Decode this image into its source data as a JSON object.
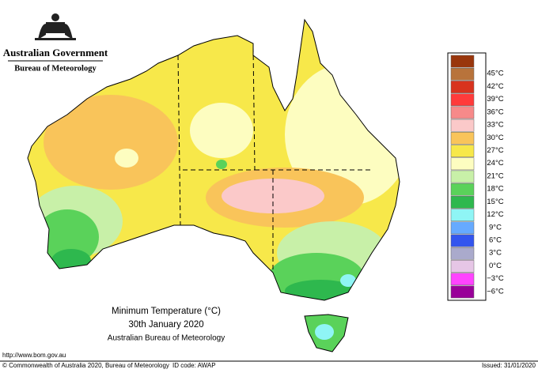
{
  "header": {
    "government": "Australian Government",
    "bureau": "Bureau of Meteorology"
  },
  "legend": {
    "colors": [
      "#99360c",
      "#b8733b",
      "#d8331e",
      "#ff3b3b",
      "#f78a8a",
      "#fbc9c9",
      "#f9c45a",
      "#f7e84a",
      "#fdfdc0",
      "#c8f0a8",
      "#5ad25a",
      "#2eb84e",
      "#8ff5f5",
      "#66aaff",
      "#3355ee",
      "#aaaacc",
      "#e6c6e6",
      "#ff44ff",
      "#990099"
    ],
    "labels": [
      "45°C",
      "42°C",
      "39°C",
      "36°C",
      "33°C",
      "30°C",
      "27°C",
      "24°C",
      "21°C",
      "18°C",
      "15°C",
      "12°C",
      "9°C",
      "6°C",
      "3°C",
      "0°C",
      "−3°C",
      "−6°C"
    ]
  },
  "caption": {
    "title": "Minimum Temperature (°C)",
    "date": "30th January 2020",
    "source": "Australian Bureau of Meteorology"
  },
  "footer": {
    "url": "http://www.bom.gov.au",
    "copyright": "© Commonwealth of Australia 2020, Bureau of Meteorology",
    "id_code": "ID code: AWAP",
    "issued": "Issued: 31/01/2020"
  }
}
